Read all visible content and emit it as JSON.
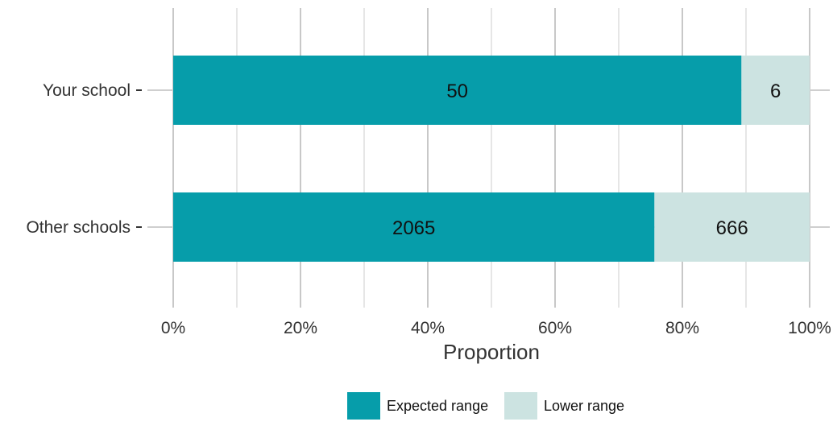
{
  "chart_data": {
    "type": "bar",
    "orientation": "horizontal",
    "stacked": true,
    "normalized": true,
    "categories": [
      "Your school",
      "Other schools"
    ],
    "series": [
      {
        "name": "Expected range",
        "color": "#069DAA",
        "values": [
          50,
          2065
        ]
      },
      {
        "name": "Lower range",
        "color": "#CCE3E1",
        "values": [
          6,
          666
        ]
      }
    ],
    "xlabel": "Proportion",
    "ylabel": "",
    "xlim": [
      0,
      100
    ],
    "x_ticks": [
      "0%",
      "20%",
      "40%",
      "60%",
      "80%",
      "100%"
    ],
    "grid": true,
    "legend_position": "bottom"
  }
}
